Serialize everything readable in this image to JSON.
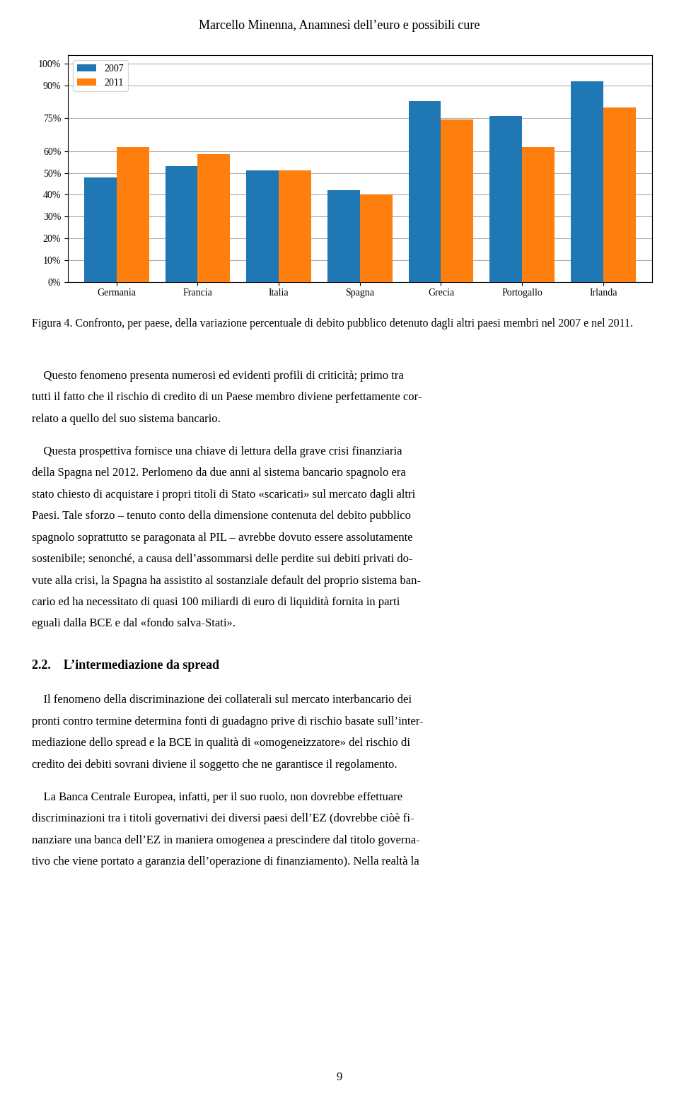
{
  "chart_data": {
    "type": "bar",
    "title": "Marcello Minenna, Anamnesi dell’euro e possibili cure",
    "subtitle": "Figura 4. Confronto, per paese, della variazione percentuale di debito pubblico detenuto dagli altri paesi membri nel 2007 e nel 2011.",
    "categories": [
      "Germania",
      "Francia",
      "Italia",
      "Spagna",
      "Grecia",
      "Portogallo",
      "Irlanda"
    ],
    "series": [
      {
        "name": "2007",
        "values": [
          0.48,
          0.53,
          0.51,
          0.42,
          0.83,
          0.76,
          0.92
        ]
      },
      {
        "name": "2011",
        "values": [
          0.62,
          0.585,
          0.51,
          0.4,
          0.745,
          0.62,
          0.8
        ]
      }
    ],
    "ylim": [
      0,
      1.04
    ],
    "yticks": [
      {
        "value": 0.0,
        "label": "0%"
      },
      {
        "value": 0.1,
        "label": "10%"
      },
      {
        "value": 0.2,
        "label": "20%"
      },
      {
        "value": 0.3,
        "label": "30%"
      },
      {
        "value": 0.4,
        "label": "40%"
      },
      {
        "value": 0.5,
        "label": "50%"
      },
      {
        "value": 0.6,
        "label": "60%"
      },
      {
        "value": 0.75,
        "label": "75%"
      },
      {
        "value": 0.9,
        "label": "90%"
      },
      {
        "value": 1.0,
        "label": "100%"
      }
    ],
    "grid": true,
    "legend": "upper left",
    "annotations": [
      [
        "    Questo fenomeno presenta numerosi ed evidenti profili di criticità; primo tra",
        "tutti il fatto che il rischio di credito di un Paese membro diviene perfettamente cor-",
        "relato a quello del suo sistema bancario."
      ],
      [
        "    Questa prospettiva fornisce una chiave di lettura della grave crisi finanziaria",
        "della Spagna nel 2012. Perlomeno da due anni al sistema bancario spagnolo era",
        "stato chiesto di acquistare i propri titoli di Stato «scaricati» sul mercato dagli altri",
        "Paesi. Tale sforzo – tenuto conto della dimensione contenuta del debito pubblico",
        "spagnolo soprattutto se paragonata al PIL – avrebbe dovuto essere assolutamente",
        "sostenibile; senonché, a causa dell’assommarsi delle perdite sui debiti privati do-",
        "vute alla crisi, la Spagna ha assistito al sostanziale default del proprio sistema ban-",
        "cario ed ha necessitato di quasi 100 miliardi di euro di liquidità fornita in parti",
        "eguali dalla BCE e dal «fondo salva-Stati»."
      ],
      [
        "2.2.    L’intermediazione da spread"
      ],
      [
        "    Il fenomeno della discriminazione dei collaterali sul mercato interbancario dei",
        "pronti contro termine determina fonti di guadagno prive di rischio basate sull’inter-",
        "mediazione dello spread e la BCE in qualità di «omogeneizzatore» del rischio di",
        "credito dei debiti sovrani diviene il soggetto che ne garantisce il regolamento."
      ],
      [
        "    La Banca Centrale Europea, infatti, per il suo ruolo, non dovrebbe effettuare",
        "discriminazioni tra i titoli governativi dei diversi paesi dell’EZ (dovrebbe ciòè fi-",
        "nanziare una banca dell’EZ in maniera omogenea a prescindere dal titolo governa-",
        "tivo che viene portato a garanzia dell’operazione di finanziamento). Nella realtà la"
      ],
      [
        "9"
      ]
    ]
  }
}
